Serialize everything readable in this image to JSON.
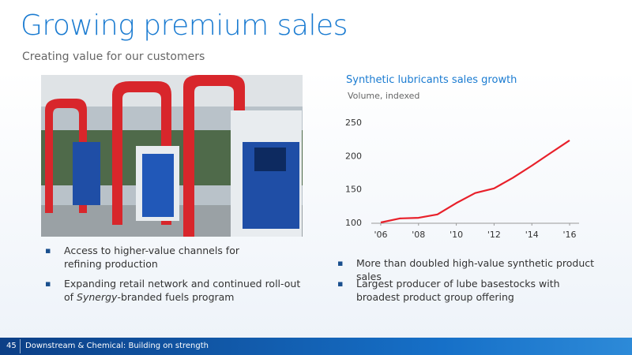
{
  "header": {
    "title": "Growing premium sales",
    "subtitle": "Creating value for our customers"
  },
  "left_bullets": [
    {
      "text": "Access to higher-value channels for refining production"
    },
    {
      "before": "Expanding retail network and continued roll-out of ",
      "italic": "Synergy",
      "after": "-branded fuels program"
    }
  ],
  "right_bullets": [
    "More than doubled high-value synthetic product sales",
    "Largest producer of lube basestocks with broadest product group offering"
  ],
  "footer": {
    "page": "45",
    "text": "Downstream & Chemical:  Building on strength"
  },
  "chart_data": {
    "type": "line",
    "title": "Synthetic lubricants sales growth",
    "subtitle": "Volume, indexed",
    "x": [
      2006,
      2007,
      2008,
      2009,
      2010,
      2011,
      2012,
      2013,
      2014,
      2015,
      2016
    ],
    "values": [
      100,
      106,
      107,
      112,
      129,
      144,
      151,
      167,
      185,
      204,
      223
    ],
    "color": "#e8202a",
    "xlim": [
      2005.5,
      2016.5
    ],
    "xticks": [
      {
        "value": 2006,
        "label": "'06"
      },
      {
        "value": 2008,
        "label": "'08"
      },
      {
        "value": 2010,
        "label": "'10"
      },
      {
        "value": 2012,
        "label": "'12"
      },
      {
        "value": 2014,
        "label": "'14"
      },
      {
        "value": 2016,
        "label": "'16"
      }
    ],
    "ylim": [
      100,
      250
    ],
    "yticks": [
      100,
      150,
      200,
      250
    ],
    "grid": false
  }
}
